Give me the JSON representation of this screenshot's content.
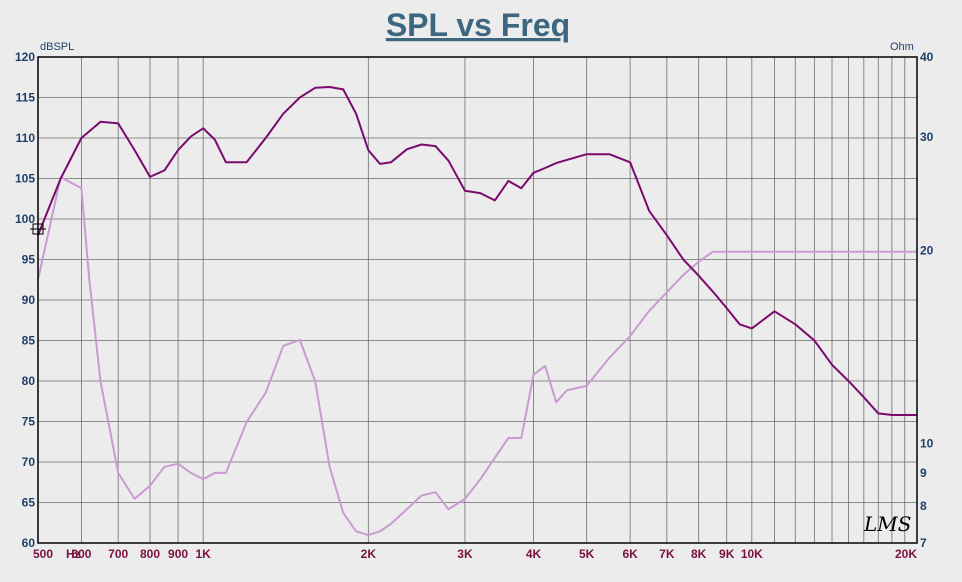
{
  "chart_data": {
    "type": "line",
    "title": "SPL vs Freq",
    "left_axis_unit": "dBSPL",
    "right_axis_unit": "Ohm",
    "x_scale": "log",
    "xlim": [
      500,
      20000
    ],
    "ylim": [
      60,
      120
    ],
    "y2lim": [
      7,
      40
    ],
    "x_ticks": [
      {
        "v": 500,
        "label": "500"
      },
      {
        "v": 580,
        "label": "Hz"
      },
      {
        "v": 600,
        "label": "600"
      },
      {
        "v": 700,
        "label": "700"
      },
      {
        "v": 800,
        "label": "800"
      },
      {
        "v": 900,
        "label": "900"
      },
      {
        "v": 1000,
        "label": "1K"
      },
      {
        "v": 2000,
        "label": "2K"
      },
      {
        "v": 3000,
        "label": "3K"
      },
      {
        "v": 4000,
        "label": "4K"
      },
      {
        "v": 5000,
        "label": "5K"
      },
      {
        "v": 6000,
        "label": "6K"
      },
      {
        "v": 7000,
        "label": "7K"
      },
      {
        "v": 8000,
        "label": "8K"
      },
      {
        "v": 9000,
        "label": "9K"
      },
      {
        "v": 10000,
        "label": "10K"
      },
      {
        "v": 20000,
        "label": "20K"
      }
    ],
    "y_ticks": [
      "60",
      "65",
      "70",
      "75",
      "80",
      "85",
      "90",
      "95",
      "100",
      "105",
      "110",
      "115",
      "120"
    ],
    "y2_ticks": [
      {
        "v": 7,
        "label": "7"
      },
      {
        "v": 8,
        "label": "8"
      },
      {
        "v": 9,
        "label": "9"
      },
      {
        "v": 10,
        "label": "10"
      },
      {
        "v": 20,
        "label": "20"
      },
      {
        "v": 30,
        "label": "30"
      },
      {
        "v": 40,
        "label": "40"
      }
    ],
    "grid": true,
    "colors": {
      "spl": "#7a0a6e",
      "impedance": "#c99bd0",
      "axis": "#000000",
      "grid": "#6e6e6e"
    },
    "series": [
      {
        "key": "spl",
        "axis": "left",
        "x": [
          500,
          550,
          600,
          650,
          700,
          750,
          800,
          850,
          900,
          950,
          1000,
          1050,
          1100,
          1200,
          1300,
          1400,
          1500,
          1600,
          1700,
          1800,
          1900,
          2000,
          2100,
          2200,
          2350,
          2500,
          2650,
          2800,
          3000,
          3200,
          3400,
          3600,
          3800,
          4000,
          4200,
          4400,
          4600,
          5000,
          5500,
          6000,
          6500,
          7000,
          7500,
          8000,
          8500,
          9000,
          9500,
          10000,
          11000,
          12000,
          13000,
          14000,
          15000,
          16000,
          17000,
          18000,
          19000,
          20000
        ],
        "values": [
          98,
          105,
          110,
          112,
          111.8,
          108.5,
          105.2,
          106,
          108.5,
          110.2,
          111.2,
          109.8,
          107,
          107,
          110,
          113,
          115,
          116.2,
          116.3,
          116,
          113,
          108.5,
          106.8,
          107,
          108.6,
          109.2,
          109,
          107.2,
          103.5,
          103.2,
          102.3,
          104.7,
          103.8,
          105.7,
          106.3,
          106.9,
          107.3,
          108,
          108,
          107,
          101,
          98,
          95,
          93,
          91,
          89,
          87,
          86.5,
          88.6,
          87,
          85,
          82,
          80,
          78,
          76,
          75.8,
          75.8,
          75.8
        ]
      },
      {
        "key": "impedance",
        "axis": "right",
        "x": [
          500,
          550,
          600,
          620,
          650,
          700,
          750,
          800,
          850,
          900,
          950,
          1000,
          1050,
          1100,
          1200,
          1300,
          1400,
          1500,
          1600,
          1700,
          1800,
          1900,
          2000,
          2100,
          2200,
          2350,
          2500,
          2650,
          2800,
          3000,
          3200,
          3400,
          3600,
          3800,
          4000,
          4200,
          4400,
          4600,
          5000,
          5500,
          6000,
          6500,
          7000,
          7500,
          8000,
          8500,
          9000,
          9500,
          10000,
          11000,
          12000,
          13000,
          14000,
          15000,
          16000,
          17000,
          18000,
          19000,
          20000
        ],
        "values": [
          18,
          26,
          25,
          18,
          12.5,
          9,
          8.2,
          8.6,
          9.2,
          9.3,
          9,
          8.8,
          9,
          9,
          10.8,
          12,
          14.2,
          14.5,
          12.5,
          9.2,
          7.8,
          7.3,
          7.2,
          7.3,
          7.5,
          7.9,
          8.3,
          8.4,
          7.9,
          8.2,
          8.8,
          9.5,
          10.2,
          10.2,
          12.8,
          13.2,
          11.6,
          12.1,
          12.3,
          13.6,
          14.7,
          16.1,
          17.2,
          18.3,
          19.2,
          19.9,
          19.9,
          19.9,
          19.9,
          19.9,
          19.9,
          19.9,
          19.9,
          19.9,
          19.9,
          19.9,
          19.9,
          19.9,
          19.9
        ]
      }
    ]
  },
  "watermark": "LMS"
}
